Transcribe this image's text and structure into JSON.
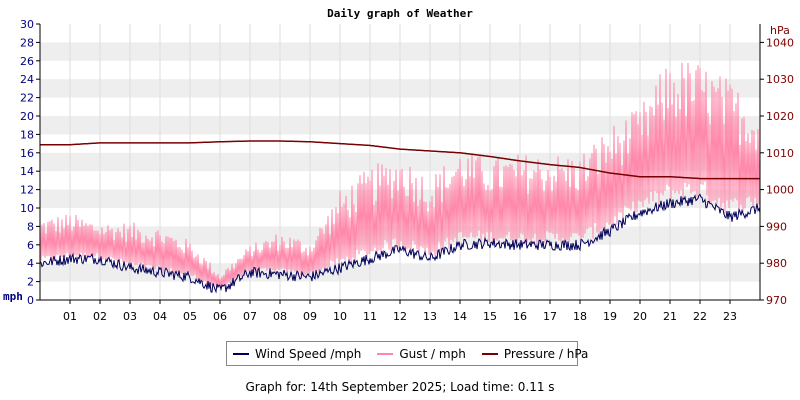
{
  "chart_data": {
    "type": "line",
    "title": "Daily graph of Weather",
    "x_ticks": [
      "01",
      "02",
      "03",
      "04",
      "05",
      "06",
      "07",
      "08",
      "09",
      "10",
      "11",
      "12",
      "13",
      "14",
      "15",
      "16",
      "17",
      "18",
      "19",
      "20",
      "21",
      "22",
      "23"
    ],
    "x_range": [
      0,
      24
    ],
    "y_left": {
      "label": "mph",
      "range": [
        0,
        30
      ],
      "ticks": [
        "0",
        "2",
        "4",
        "6",
        "8",
        "10",
        "12",
        "14",
        "16",
        "18",
        "20",
        "22",
        "24",
        "26",
        "28",
        "30"
      ]
    },
    "y_right": {
      "label": "hPa",
      "range": [
        970,
        1045
      ],
      "ticks": [
        "970",
        "980",
        "990",
        "1000",
        "1010",
        "1020",
        "1030",
        "1040"
      ]
    },
    "series": [
      {
        "name": "Wind Speed /mph",
        "color": "#00005a",
        "axis": "left",
        "hour_values": [
          4.0,
          4.5,
          4.5,
          3.5,
          3.0,
          2.5,
          1.0,
          3.0,
          2.8,
          2.5,
          3.5,
          4.5,
          5.5,
          4.5,
          6.0,
          6.2,
          6.0,
          6.0,
          6.0,
          7.5,
          9.5,
          10.5,
          11.0,
          9.0,
          10.0
        ]
      },
      {
        "name": "Gust / mph",
        "color": "#ff88aa",
        "axis": "left",
        "base_values": [
          4.0,
          4.5,
          4.5,
          3.5,
          3.0,
          2.5,
          1.0,
          3.0,
          2.8,
          2.5,
          3.5,
          4.5,
          5.5,
          4.5,
          6.0,
          6.2,
          6.0,
          6.0,
          6.0,
          7.5,
          9.5,
          10.5,
          11.0,
          9.0,
          10.0
        ],
        "peak_values": [
          9.0,
          9.5,
          8.5,
          8.5,
          8.0,
          6.5,
          3.0,
          6.0,
          7.5,
          6.5,
          12.0,
          14.5,
          16.0,
          13.5,
          16.5,
          15.5,
          16.0,
          16.0,
          16.0,
          19.0,
          21.0,
          26.5,
          26.0,
          24.0,
          21.0
        ]
      },
      {
        "name": "Pressure / hPa",
        "color": "#780000",
        "axis": "right",
        "hour_values": [
          1012.2,
          1012.2,
          1012.7,
          1012.7,
          1012.7,
          1012.7,
          1013.0,
          1013.2,
          1013.2,
          1013.0,
          1012.5,
          1012.0,
          1011.0,
          1010.5,
          1010.0,
          1009.0,
          1007.8,
          1006.8,
          1006.0,
          1004.5,
          1003.5,
          1003.5,
          1003.0,
          1003.0,
          1003.0
        ]
      }
    ],
    "legend_position": "bottom-center"
  },
  "colors": {
    "wind": "#00005a",
    "gust": "#ff88aa",
    "pressure": "#780000",
    "left_axis_text": "#000080",
    "right_axis_text": "#800000",
    "stripe": "#eeeeee"
  },
  "footer": "Graph for: 14th September 2025; Load time: 0.11 s"
}
